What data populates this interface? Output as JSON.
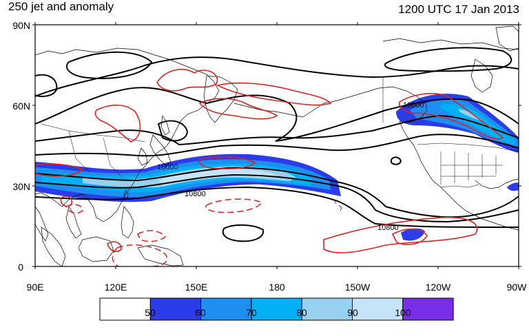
{
  "title_left": "250 jet and anomaly",
  "title_right": "1200 UTC 17 Jan 2013",
  "lat_labels": [
    "90N",
    "60N",
    "30N",
    "0"
  ],
  "lon_labels": [
    "90E",
    "120E",
    "150E",
    "180",
    "150W",
    "120W",
    "90W"
  ],
  "contour_labels": [
    "10000",
    "10800",
    "10800",
    "10000"
  ],
  "colorbar": {
    "labels": [
      "50",
      "60",
      "70",
      "80",
      "90",
      "100"
    ],
    "colors": [
      "#ffffff",
      "#2a3de8",
      "#1e8ef0",
      "#00b0f5",
      "#98d0f0",
      "#c6e4f7",
      "#7a2ee8"
    ]
  },
  "colors": {
    "height_contour": "#000000",
    "anomaly_contour": "#e02020",
    "coastline": "#000000"
  }
}
